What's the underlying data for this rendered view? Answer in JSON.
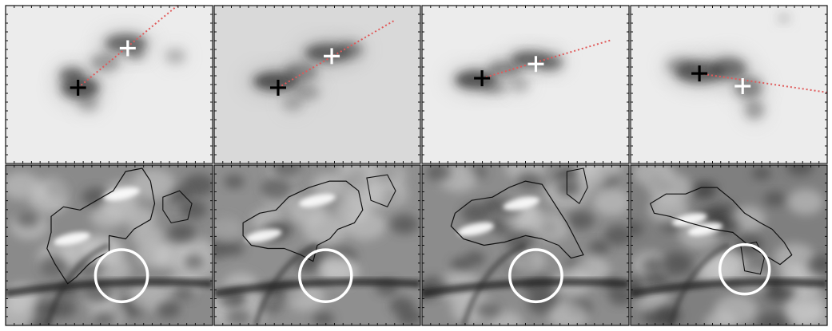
{
  "figure": {
    "columns": 4,
    "rows": 2
  },
  "panels_top": [
    {
      "background": "#ececec",
      "blobs": [
        [
          0.36,
          0.52,
          0.09,
          0.07,
          0.95
        ],
        [
          0.32,
          0.44,
          0.06,
          0.05,
          0.7
        ],
        [
          0.58,
          0.24,
          0.1,
          0.06,
          0.8
        ],
        [
          0.48,
          0.36,
          0.07,
          0.06,
          0.45
        ],
        [
          0.4,
          0.62,
          0.05,
          0.05,
          0.35
        ],
        [
          0.82,
          0.32,
          0.05,
          0.05,
          0.3
        ],
        [
          0.63,
          0.3,
          0.04,
          0.04,
          0.5
        ]
      ],
      "black_cross": [
        0.35,
        0.52
      ],
      "white_cross": [
        0.59,
        0.27
      ],
      "line_end": [
        0.83,
        0.0
      ]
    },
    {
      "background": "#d9d9d9",
      "blobs": [
        [
          0.3,
          0.48,
          0.11,
          0.06,
          0.95
        ],
        [
          0.42,
          0.42,
          0.08,
          0.06,
          0.55
        ],
        [
          0.55,
          0.3,
          0.11,
          0.06,
          0.85
        ],
        [
          0.66,
          0.28,
          0.06,
          0.05,
          0.55
        ],
        [
          0.45,
          0.55,
          0.06,
          0.05,
          0.35
        ],
        [
          0.38,
          0.62,
          0.05,
          0.05,
          0.3
        ]
      ],
      "black_cross": [
        0.31,
        0.52
      ],
      "white_cross": [
        0.57,
        0.32
      ],
      "line_end": [
        0.88,
        0.09
      ]
    },
    {
      "background": "#ececec",
      "blobs": [
        [
          0.26,
          0.47,
          0.1,
          0.06,
          0.95
        ],
        [
          0.4,
          0.4,
          0.08,
          0.05,
          0.6
        ],
        [
          0.52,
          0.34,
          0.09,
          0.05,
          0.85
        ],
        [
          0.62,
          0.36,
          0.06,
          0.05,
          0.7
        ],
        [
          0.35,
          0.52,
          0.06,
          0.04,
          0.4
        ],
        [
          0.47,
          0.5,
          0.05,
          0.05,
          0.3
        ]
      ],
      "black_cross": [
        0.29,
        0.46
      ],
      "white_cross": [
        0.55,
        0.37
      ],
      "line_end": [
        0.91,
        0.22
      ]
    },
    {
      "background": "#ececec",
      "blobs": [
        [
          0.35,
          0.42,
          0.12,
          0.07,
          0.9
        ],
        [
          0.5,
          0.4,
          0.09,
          0.07,
          0.75
        ],
        [
          0.6,
          0.52,
          0.07,
          0.07,
          0.6
        ],
        [
          0.63,
          0.66,
          0.05,
          0.06,
          0.45
        ],
        [
          0.25,
          0.38,
          0.07,
          0.05,
          0.4
        ],
        [
          0.78,
          0.08,
          0.03,
          0.03,
          0.25
        ]
      ],
      "black_cross": [
        0.35,
        0.43
      ],
      "white_cross": [
        0.57,
        0.51
      ],
      "line_end": [
        1.0,
        0.55
      ]
    }
  ],
  "panels_bottom": [
    {
      "background": "#8a8a8a",
      "contour": [
        [
          0.22,
          0.32
        ],
        [
          0.28,
          0.26
        ],
        [
          0.36,
          0.28
        ],
        [
          0.44,
          0.22
        ],
        [
          0.52,
          0.16
        ],
        [
          0.58,
          0.04
        ],
        [
          0.66,
          0.02
        ],
        [
          0.7,
          0.1
        ],
        [
          0.72,
          0.24
        ],
        [
          0.7,
          0.34
        ],
        [
          0.62,
          0.4
        ],
        [
          0.58,
          0.46
        ],
        [
          0.5,
          0.44
        ],
        [
          0.5,
          0.54
        ],
        [
          0.44,
          0.58
        ],
        [
          0.4,
          0.62
        ],
        [
          0.34,
          0.7
        ],
        [
          0.3,
          0.74
        ],
        [
          0.24,
          0.62
        ],
        [
          0.2,
          0.52
        ],
        [
          0.22,
          0.42
        ]
      ],
      "contour2": [
        [
          0.76,
          0.2
        ],
        [
          0.84,
          0.16
        ],
        [
          0.9,
          0.24
        ],
        [
          0.88,
          0.34
        ],
        [
          0.8,
          0.36
        ],
        [
          0.76,
          0.28
        ]
      ],
      "circle": [
        0.56,
        0.69,
        0.12
      ],
      "bright": [
        [
          0.32,
          0.46
        ],
        [
          0.56,
          0.18
        ]
      ]
    },
    {
      "background": "#8f8f8f",
      "contour": [
        [
          0.14,
          0.36
        ],
        [
          0.22,
          0.3
        ],
        [
          0.3,
          0.28
        ],
        [
          0.36,
          0.2
        ],
        [
          0.46,
          0.14
        ],
        [
          0.56,
          0.1
        ],
        [
          0.64,
          0.1
        ],
        [
          0.7,
          0.16
        ],
        [
          0.72,
          0.28
        ],
        [
          0.68,
          0.36
        ],
        [
          0.6,
          0.4
        ],
        [
          0.56,
          0.46
        ],
        [
          0.5,
          0.5
        ],
        [
          0.48,
          0.6
        ],
        [
          0.42,
          0.56
        ],
        [
          0.34,
          0.52
        ],
        [
          0.26,
          0.52
        ],
        [
          0.18,
          0.5
        ],
        [
          0.14,
          0.44
        ]
      ],
      "contour2": [
        [
          0.74,
          0.08
        ],
        [
          0.84,
          0.06
        ],
        [
          0.88,
          0.16
        ],
        [
          0.84,
          0.26
        ],
        [
          0.76,
          0.22
        ]
      ],
      "circle": [
        0.54,
        0.69,
        0.12
      ],
      "bright": [
        [
          0.24,
          0.44
        ],
        [
          0.5,
          0.22
        ]
      ]
    },
    {
      "background": "#8c8c8c",
      "contour": [
        [
          0.16,
          0.3
        ],
        [
          0.24,
          0.22
        ],
        [
          0.34,
          0.2
        ],
        [
          0.42,
          0.14
        ],
        [
          0.5,
          0.1
        ],
        [
          0.58,
          0.12
        ],
        [
          0.62,
          0.2
        ],
        [
          0.66,
          0.28
        ],
        [
          0.7,
          0.36
        ],
        [
          0.74,
          0.46
        ],
        [
          0.78,
          0.56
        ],
        [
          0.72,
          0.58
        ],
        [
          0.66,
          0.5
        ],
        [
          0.58,
          0.46
        ],
        [
          0.5,
          0.44
        ],
        [
          0.4,
          0.48
        ],
        [
          0.3,
          0.5
        ],
        [
          0.2,
          0.46
        ],
        [
          0.14,
          0.38
        ]
      ],
      "contour2": [
        [
          0.7,
          0.04
        ],
        [
          0.78,
          0.02
        ],
        [
          0.8,
          0.14
        ],
        [
          0.76,
          0.24
        ],
        [
          0.7,
          0.18
        ]
      ],
      "circle": [
        0.55,
        0.69,
        0.12
      ],
      "bright": [
        [
          0.26,
          0.4
        ],
        [
          0.48,
          0.24
        ]
      ]
    },
    {
      "background": "#7f7f7f",
      "contour": [
        [
          0.1,
          0.24
        ],
        [
          0.18,
          0.18
        ],
        [
          0.28,
          0.18
        ],
        [
          0.36,
          0.14
        ],
        [
          0.44,
          0.14
        ],
        [
          0.52,
          0.22
        ],
        [
          0.58,
          0.3
        ],
        [
          0.66,
          0.36
        ],
        [
          0.72,
          0.4
        ],
        [
          0.78,
          0.48
        ],
        [
          0.82,
          0.56
        ],
        [
          0.76,
          0.62
        ],
        [
          0.68,
          0.56
        ],
        [
          0.6,
          0.5
        ],
        [
          0.52,
          0.42
        ],
        [
          0.42,
          0.4
        ],
        [
          0.3,
          0.36
        ],
        [
          0.2,
          0.32
        ],
        [
          0.12,
          0.3
        ]
      ],
      "contour2": [
        [
          0.56,
          0.5
        ],
        [
          0.64,
          0.48
        ],
        [
          0.68,
          0.58
        ],
        [
          0.66,
          0.68
        ],
        [
          0.58,
          0.66
        ]
      ],
      "circle": [
        0.58,
        0.65,
        0.12
      ],
      "bright": [
        [
          0.3,
          0.34
        ],
        [
          0.38,
          0.4
        ]
      ]
    }
  ]
}
